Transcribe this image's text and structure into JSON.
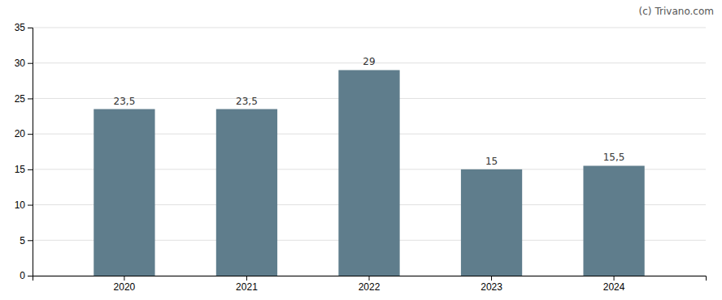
{
  "chart_data": {
    "type": "bar",
    "categories": [
      "2020",
      "2021",
      "2022",
      "2023",
      "2024"
    ],
    "values": [
      23.5,
      23.5,
      29,
      15,
      15.5
    ],
    "value_labels": [
      "23,5",
      "23,5",
      "29",
      "15",
      "15,5"
    ],
    "color": "#5f7d8c",
    "ylim": [
      0,
      35
    ],
    "yticks": [
      0,
      5,
      10,
      15,
      20,
      25,
      30,
      35
    ],
    "grid": true,
    "data_labels": true,
    "annotations": [
      "(c)",
      "Trivano.com"
    ]
  }
}
